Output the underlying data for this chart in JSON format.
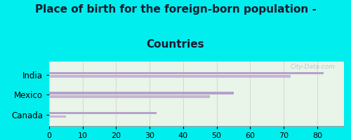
{
  "title_line1": "Place of birth for the foreign-born population -",
  "title_line2": "Countries",
  "categories": [
    "India",
    "Mexico",
    "Canada"
  ],
  "bar1_values": [
    82,
    72,
    55,
    48,
    32,
    5
  ],
  "bar_colors": [
    "#b8a0cc",
    "#c8b4d8",
    "#b8a0cc",
    "#c8b4d8",
    "#b8a0cc",
    "#c8b4d8"
  ],
  "figure_bg_color": "#00eeee",
  "chart_bg_top": "#e8f5e8",
  "chart_bg_bottom": "#f5fdf5",
  "xlim": [
    0,
    88
  ],
  "xticks": [
    0,
    10,
    20,
    30,
    40,
    50,
    60,
    70,
    80
  ],
  "title_fontsize": 11,
  "label_fontsize": 8.5,
  "tick_fontsize": 8,
  "bar_height": 0.12,
  "watermark": "City-Data.com",
  "title_color": "#1a1a2e"
}
